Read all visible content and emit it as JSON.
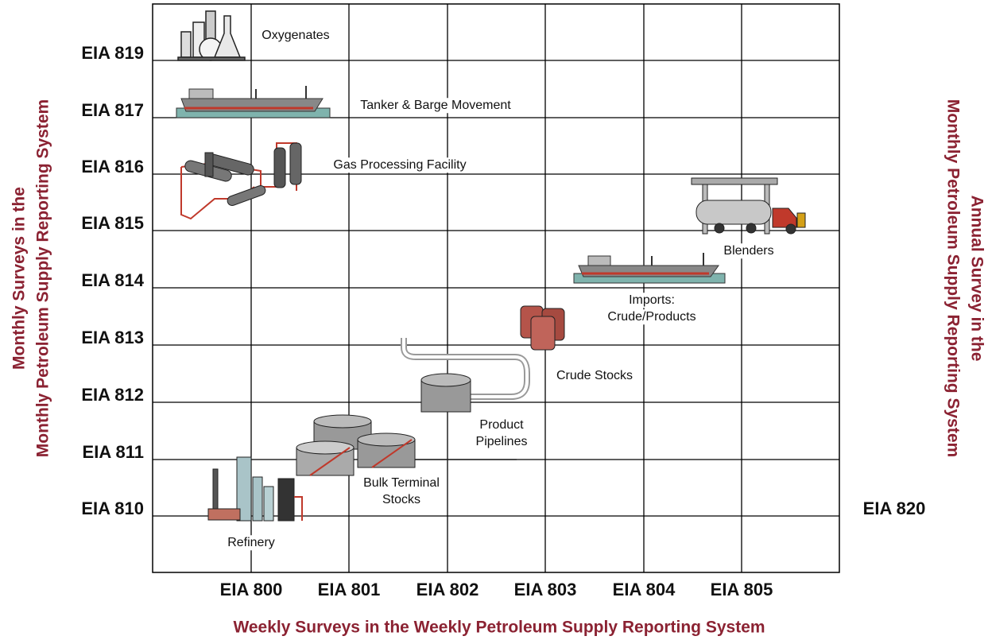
{
  "left_axis": {
    "title_lines": [
      "Monthly Surveys in the",
      "Monthly Petroleum Supply Reporting System"
    ],
    "labels": [
      "EIA 819",
      "EIA 817",
      "EIA 816",
      "EIA 815",
      "EIA 814",
      "EIA 813",
      "EIA 812",
      "EIA 811",
      "EIA 810"
    ]
  },
  "right_axis": {
    "title_lines": [
      "Annual Survey in the",
      "Monthly Petroleum Supply Reporting System"
    ],
    "label": "EIA 820"
  },
  "bottom_axis": {
    "labels": [
      "EIA 800",
      "EIA 801",
      "EIA 802",
      "EIA 803",
      "EIA 804",
      "EIA 805"
    ],
    "title": "Weekly Surveys in the Weekly Petroleum Supply Reporting System"
  },
  "nodes": [
    {
      "lines": [
        "Oxygenates"
      ]
    },
    {
      "lines": [
        "Tanker & Barge Movement"
      ]
    },
    {
      "lines": [
        "Gas Processing Facility"
      ]
    },
    {
      "lines": [
        "Blenders"
      ]
    },
    {
      "lines": [
        "Imports:",
        "Crude/Products"
      ]
    },
    {
      "lines": [
        "Crude Stocks"
      ]
    },
    {
      "lines": [
        "Product",
        "Pipelines"
      ]
    },
    {
      "lines": [
        "Bulk Terminal",
        "Stocks"
      ]
    },
    {
      "lines": [
        "Refinery"
      ]
    }
  ]
}
